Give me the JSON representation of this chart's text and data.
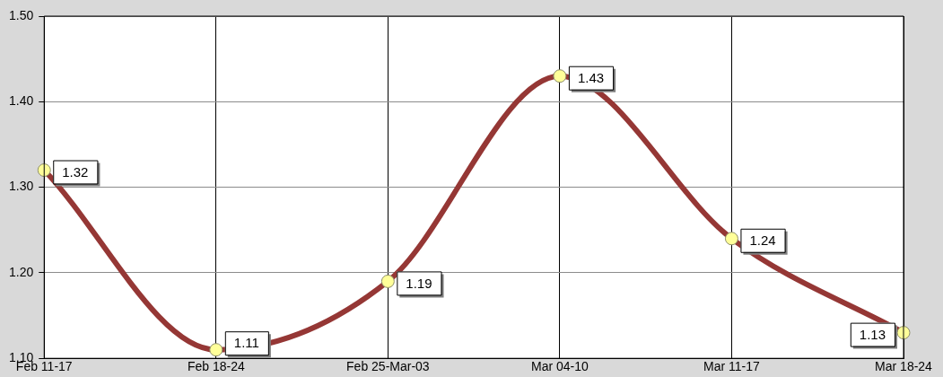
{
  "chart_data": {
    "type": "line",
    "categories": [
      "Feb 11-17",
      "Feb 18-24",
      "Feb 25-Mar-03",
      "Mar 04-10",
      "Mar 11-17",
      "Mar 18-24"
    ],
    "series": [
      {
        "color": "#953735",
        "values": [
          1.32,
          1.11,
          1.19,
          1.43,
          1.24,
          1.13
        ]
      }
    ],
    "ylim": [
      1.1,
      1.5
    ],
    "yticks": [
      {
        "value": 1.1,
        "label": "1.10"
      },
      {
        "value": 1.2,
        "label": "1.20"
      },
      {
        "value": 1.3,
        "label": "1.30"
      },
      {
        "value": 1.4,
        "label": "1.40"
      },
      {
        "value": 1.5,
        "label": "1.50"
      }
    ],
    "grid": true,
    "legend": false,
    "marker": "circle",
    "line_style": "solid",
    "data_labels": true
  }
}
